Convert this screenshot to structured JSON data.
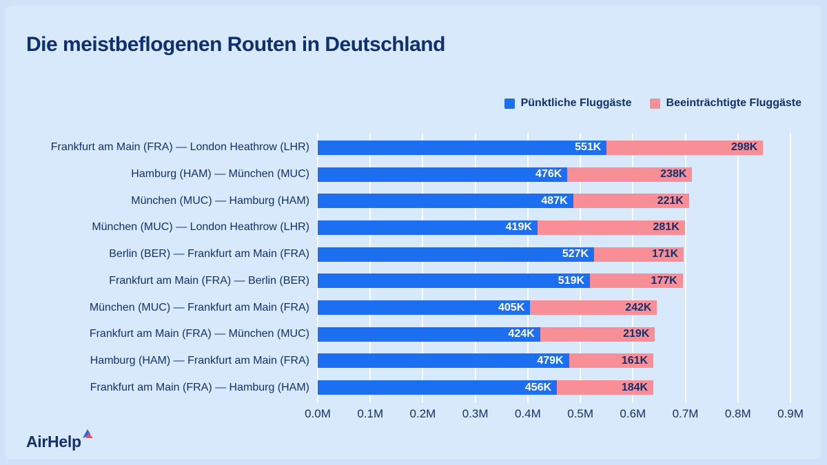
{
  "title": "Die meistbeflogenen Routen in Deutschland",
  "legend": [
    {
      "label": "Pünktliche Fluggäste",
      "color": "#1d6ff2"
    },
    {
      "label": "Beeinträchtigte Fluggäste",
      "color": "#f98f96"
    }
  ],
  "logo": {
    "text": "AirHelp",
    "mark": "triangle-icon"
  },
  "colors": {
    "background": "#d8e9fc",
    "outer_background": "#cfe2f7",
    "navy_text": "#13316c",
    "gridline": "#ffffff",
    "bar_blue": "#1d6ff2",
    "bar_pink": "#f98f96"
  },
  "chart_data": {
    "type": "bar",
    "orientation": "horizontal",
    "stacked": true,
    "title": "Die meistbeflogenen Routen in Deutschland",
    "categories": [
      "Frankfurt am Main (FRA) — London Heathrow (LHR)",
      "Hamburg (HAM) — München (MUC)",
      "München (MUC) — Hamburg (HAM)",
      "München (MUC) — London Heathrow (LHR)",
      "Berlin (BER) — Frankfurt am Main (FRA)",
      "Frankfurt am Main (FRA) — Berlin (BER)",
      "München (MUC) — Frankfurt am Main (FRA)",
      "Frankfurt am Main (FRA) — München (MUC)",
      "Hamburg (HAM) — Frankfurt am Main (FRA)",
      "Frankfurt am Main (FRA) — Hamburg (HAM)"
    ],
    "series": [
      {
        "name": "Pünktliche Fluggäste",
        "color": "#1d6ff2",
        "values": [
          551000,
          476000,
          487000,
          419000,
          527000,
          519000,
          405000,
          424000,
          479000,
          456000
        ],
        "labels": [
          "551K",
          "476K",
          "487K",
          "419K",
          "527K",
          "519K",
          "405K",
          "424K",
          "479K",
          "456K"
        ]
      },
      {
        "name": "Beeinträchtigte Fluggäste",
        "color": "#f98f96",
        "values": [
          298000,
          238000,
          221000,
          281000,
          171000,
          177000,
          242000,
          219000,
          161000,
          184000
        ],
        "labels": [
          "298K",
          "238K",
          "221K",
          "281K",
          "171K",
          "177K",
          "242K",
          "219K",
          "161K",
          "184K"
        ]
      }
    ],
    "xlim": [
      0,
      900000
    ],
    "x_ticks": [
      {
        "value": 0,
        "label": "0.0M"
      },
      {
        "value": 100000,
        "label": "0.1M"
      },
      {
        "value": 200000,
        "label": "0.2M"
      },
      {
        "value": 300000,
        "label": "0.3M"
      },
      {
        "value": 400000,
        "label": "0.4M"
      },
      {
        "value": 500000,
        "label": "0.5M"
      },
      {
        "value": 600000,
        "label": "0.6M"
      },
      {
        "value": 700000,
        "label": "0.7M"
      },
      {
        "value": 800000,
        "label": "0.8M"
      },
      {
        "value": 900000,
        "label": "0.9M"
      }
    ],
    "grid": true,
    "legend_position": "top-right"
  }
}
